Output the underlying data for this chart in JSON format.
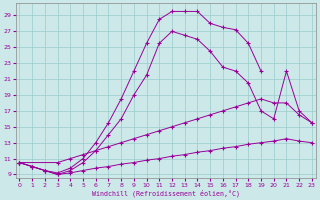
{
  "xlabel": "Windchill (Refroidissement éolien,°C)",
  "background_color": "#cce8e8",
  "grid_color": "#99cccc",
  "line_color": "#990099",
  "x_ticks": [
    0,
    1,
    2,
    3,
    4,
    5,
    6,
    7,
    8,
    9,
    10,
    11,
    12,
    13,
    14,
    15,
    16,
    17,
    18,
    19,
    20,
    21,
    22,
    23
  ],
  "y_ticks": [
    9,
    11,
    13,
    15,
    17,
    19,
    21,
    23,
    25,
    27,
    29
  ],
  "xlim": [
    -0.3,
    23.3
  ],
  "ylim": [
    8.5,
    30.5
  ],
  "lines": [
    {
      "x": [
        0,
        1,
        2,
        3,
        4,
        5,
        6,
        7,
        8,
        9,
        10,
        11,
        12,
        13,
        14,
        15,
        16,
        17,
        18,
        19
      ],
      "y": [
        10.5,
        10.0,
        9.5,
        9.2,
        9.8,
        11.0,
        13.0,
        15.5,
        18.5,
        22.0,
        25.5,
        28.5,
        29.5,
        29.5,
        29.5,
        28.0,
        27.5,
        27.2,
        25.5,
        22.0
      ]
    },
    {
      "x": [
        0,
        1,
        2,
        3,
        4,
        5,
        6,
        7,
        8,
        9,
        10,
        11,
        12,
        13,
        14,
        15,
        16,
        17,
        18,
        19,
        20,
        21,
        22,
        23
      ],
      "y": [
        10.5,
        10.0,
        9.5,
        9.0,
        9.5,
        10.5,
        12.0,
        14.0,
        16.0,
        19.0,
        21.5,
        25.5,
        27.0,
        26.5,
        26.0,
        24.5,
        22.5,
        22.0,
        20.5,
        17.0,
        16.0,
        22.0,
        17.0,
        15.5
      ]
    },
    {
      "x": [
        0,
        3,
        4,
        5,
        6,
        7,
        8,
        9,
        10,
        11,
        12,
        13,
        14,
        15,
        16,
        17,
        18,
        19,
        20,
        21,
        22,
        23
      ],
      "y": [
        10.5,
        10.5,
        11.0,
        11.5,
        12.0,
        12.5,
        13.0,
        13.5,
        14.0,
        14.5,
        15.0,
        15.5,
        16.0,
        16.5,
        17.0,
        17.5,
        18.0,
        18.5,
        18.0,
        18.0,
        16.5,
        15.5
      ]
    },
    {
      "x": [
        0,
        1,
        2,
        3,
        4,
        5,
        6,
        7,
        8,
        9,
        10,
        11,
        12,
        13,
        14,
        15,
        16,
        17,
        18,
        19,
        20,
        21,
        22,
        23
      ],
      "y": [
        10.5,
        10.0,
        9.5,
        9.0,
        9.2,
        9.5,
        9.8,
        10.0,
        10.3,
        10.5,
        10.8,
        11.0,
        11.3,
        11.5,
        11.8,
        12.0,
        12.3,
        12.5,
        12.8,
        13.0,
        13.2,
        13.5,
        13.2,
        13.0
      ]
    }
  ]
}
